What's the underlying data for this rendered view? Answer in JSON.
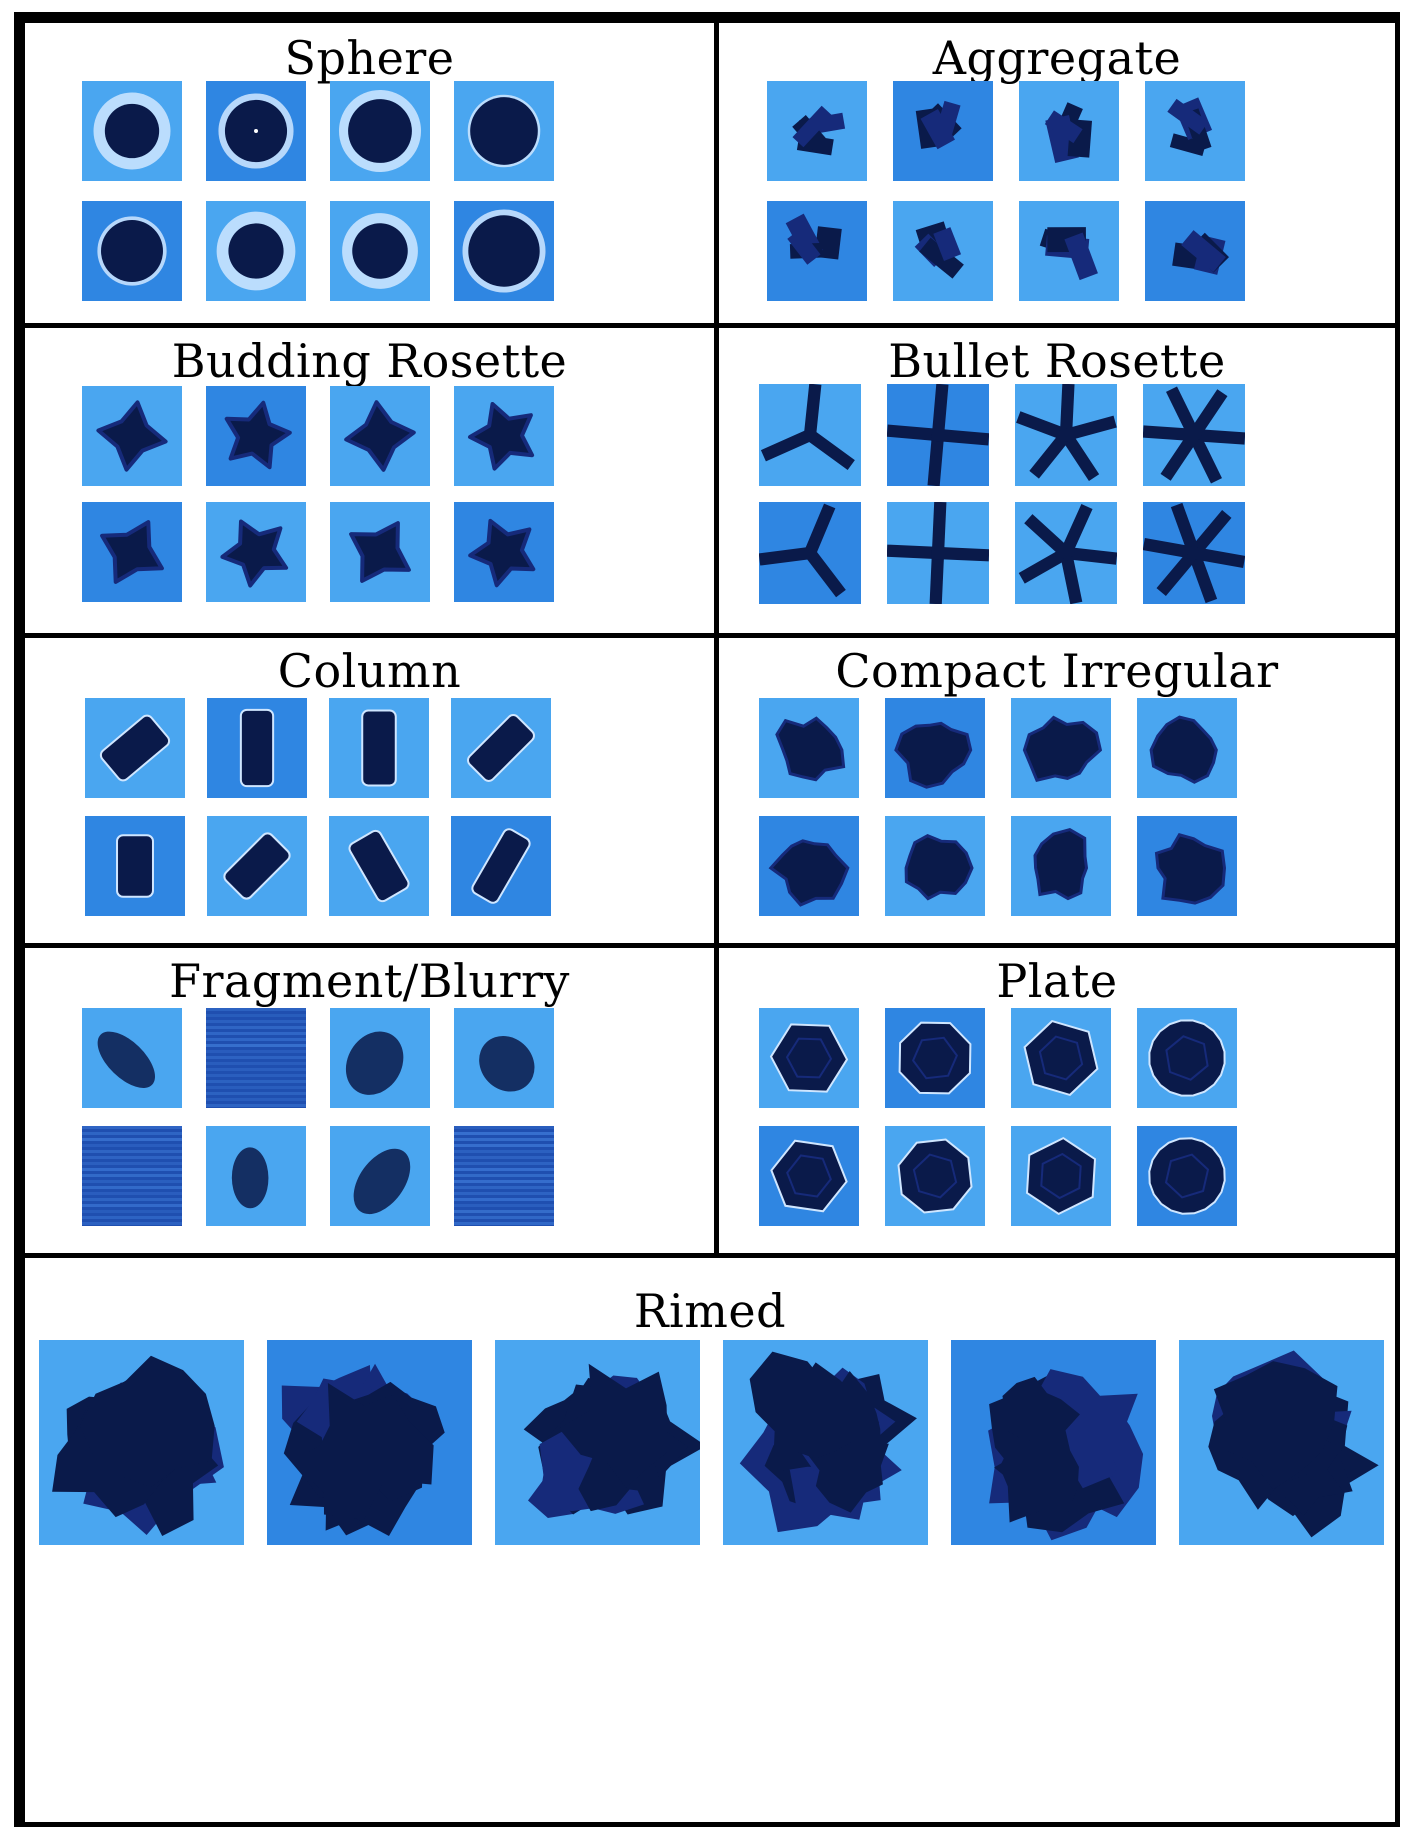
{
  "figure": {
    "panels": [
      {
        "id": "sphere",
        "title": "Sphere",
        "shape": "sphere"
      },
      {
        "id": "aggregate",
        "title": "Aggregate",
        "shape": "aggregate"
      },
      {
        "id": "budding-rosette",
        "title": "Budding Rosette",
        "shape": "budding"
      },
      {
        "id": "bullet-rosette",
        "title": "Bullet Rosette",
        "shape": "bullet"
      },
      {
        "id": "column",
        "title": "Column",
        "shape": "column"
      },
      {
        "id": "compact-irregular",
        "title": "Compact Irregular",
        "shape": "compact"
      },
      {
        "id": "fragment-blurry",
        "title": "Fragment/Blurry",
        "shape": "fragment"
      },
      {
        "id": "plate",
        "title": "Plate",
        "shape": "plate"
      },
      {
        "id": "rimed",
        "title": "Rimed",
        "shape": "rimed"
      }
    ]
  },
  "colors": {
    "background_light": "#4aa6f0",
    "background_mid": "#2f86e2",
    "particle_dark": "#0a1a4a",
    "particle_edge": "#162a7a",
    "halo": "#cfe6ff",
    "frame": "#000000"
  }
}
